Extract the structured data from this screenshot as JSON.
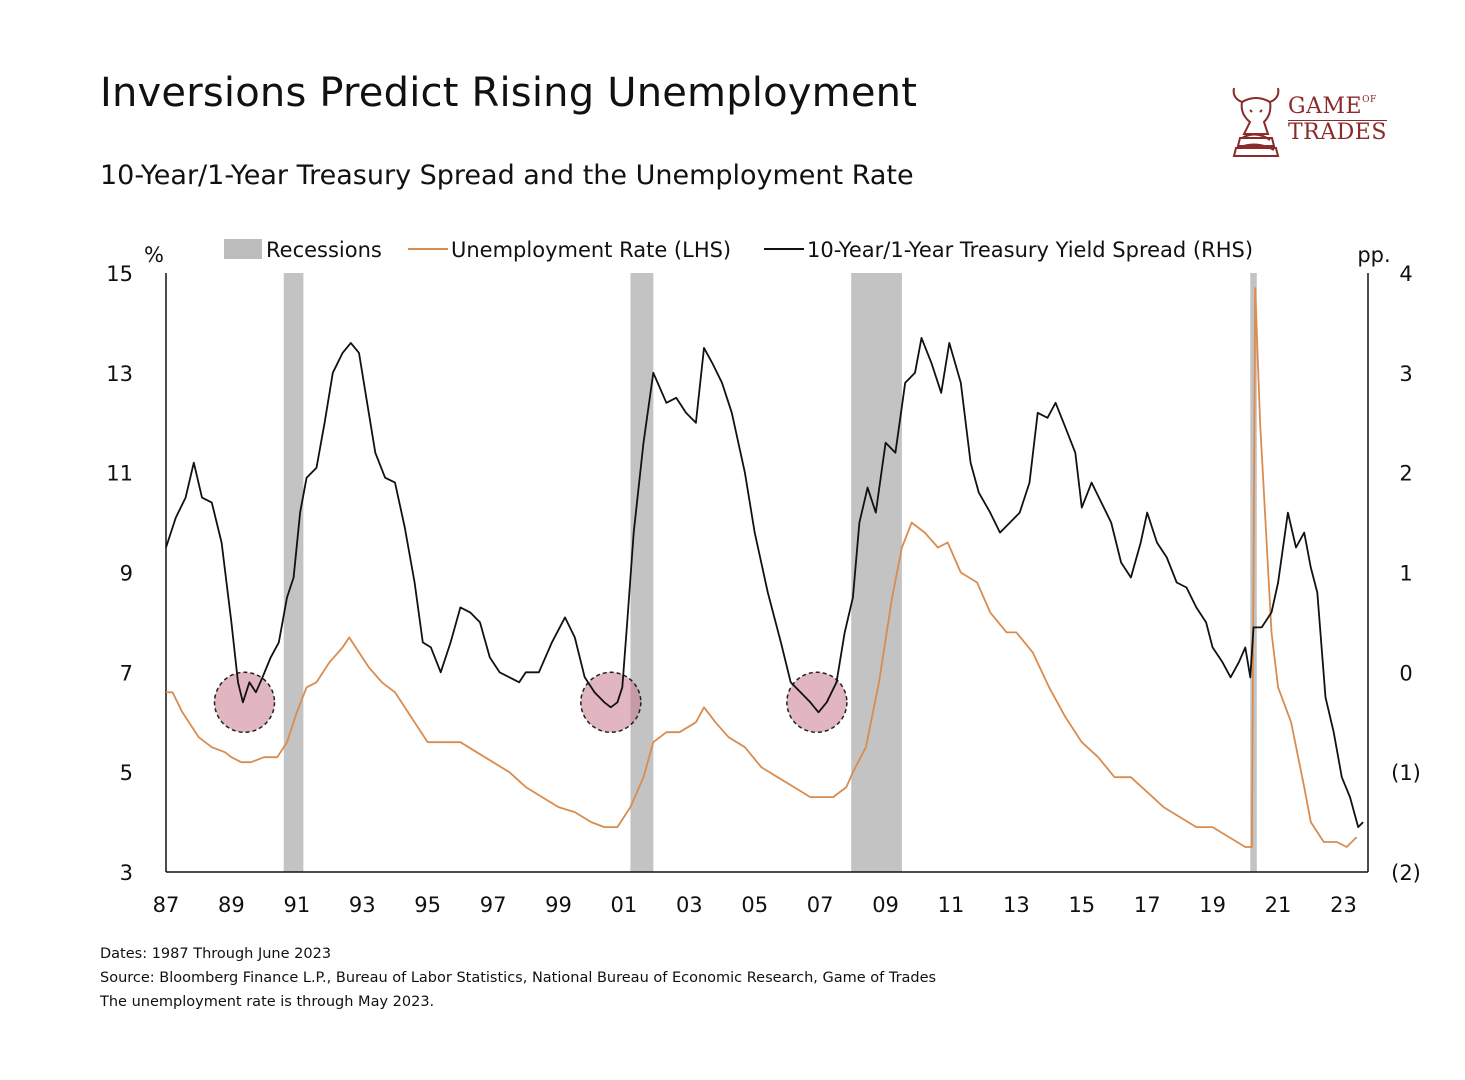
{
  "title": "Inversions Predict Rising Unemployment",
  "subtitle": "10-Year/1-Year Treasury Spread and the Unemployment Rate",
  "logo": {
    "line1": "GAME",
    "line1_small": "OF",
    "line2": "TRADES",
    "icon": "bull-chess-knight-icon",
    "color": "#8a2a2a"
  },
  "footnotes": [
    "Dates: 1987 Through June 2023",
    "Source: Bloomberg Finance L.P., Bureau of Labor Statistics, National Bureau of Economic Research, Game of Trades",
    "The unemployment rate is through May 2023."
  ],
  "chart_data": {
    "type": "line",
    "title": "Inversions Predict Rising Unemployment",
    "legend": [
      "Recessions",
      "Unemployment Rate (LHS)",
      "10-Year/1-Year Treasury Yield Spread (RHS)"
    ],
    "ylabel_left": "%",
    "ylabel_right": "pp.",
    "xlim": [
      1987,
      2023.75
    ],
    "ylim_left": [
      3,
      15
    ],
    "ylim_right": [
      -2,
      4
    ],
    "x_ticks": [
      "87",
      "89",
      "91",
      "93",
      "95",
      "97",
      "99",
      "01",
      "03",
      "05",
      "07",
      "09",
      "11",
      "13",
      "15",
      "17",
      "19",
      "21",
      "23"
    ],
    "y_ticks_left": [
      "3",
      "5",
      "7",
      "9",
      "11",
      "13",
      "15"
    ],
    "y_ticks_right": [
      "(2)",
      "(1)",
      "0",
      "1",
      "2",
      "3",
      "4"
    ],
    "recessions": [
      [
        1990.6,
        1991.2
      ],
      [
        2001.2,
        2001.9
      ],
      [
        2007.95,
        2009.5
      ],
      [
        2020.15,
        2020.35
      ]
    ],
    "inversion_highlights": [
      [
        1989.4,
        -0.3
      ],
      [
        2000.6,
        -0.3
      ],
      [
        2006.9,
        -0.3
      ]
    ],
    "colors": {
      "unemployment": "#d98c4f",
      "spread": "#111111",
      "recession": "#bdbdbd",
      "highlight": "#c97a8c"
    },
    "series": [
      {
        "name": "Unemployment Rate (LHS)",
        "axis": "left",
        "points": [
          [
            1987.0,
            6.6
          ],
          [
            1987.2,
            6.6
          ],
          [
            1987.5,
            6.2
          ],
          [
            1987.8,
            5.9
          ],
          [
            1988.0,
            5.7
          ],
          [
            1988.4,
            5.5
          ],
          [
            1988.8,
            5.4
          ],
          [
            1989.0,
            5.3
          ],
          [
            1989.3,
            5.2
          ],
          [
            1989.6,
            5.2
          ],
          [
            1990.0,
            5.3
          ],
          [
            1990.4,
            5.3
          ],
          [
            1990.7,
            5.6
          ],
          [
            1991.0,
            6.2
          ],
          [
            1991.3,
            6.7
          ],
          [
            1991.6,
            6.8
          ],
          [
            1992.0,
            7.2
          ],
          [
            1992.4,
            7.5
          ],
          [
            1992.6,
            7.7
          ],
          [
            1992.9,
            7.4
          ],
          [
            1993.2,
            7.1
          ],
          [
            1993.6,
            6.8
          ],
          [
            1994.0,
            6.6
          ],
          [
            1994.5,
            6.1
          ],
          [
            1995.0,
            5.6
          ],
          [
            1995.5,
            5.6
          ],
          [
            1996.0,
            5.6
          ],
          [
            1996.5,
            5.4
          ],
          [
            1997.0,
            5.2
          ],
          [
            1997.5,
            5.0
          ],
          [
            1998.0,
            4.7
          ],
          [
            1998.5,
            4.5
          ],
          [
            1999.0,
            4.3
          ],
          [
            1999.5,
            4.2
          ],
          [
            2000.0,
            4.0
          ],
          [
            2000.4,
            3.9
          ],
          [
            2000.8,
            3.9
          ],
          [
            2001.2,
            4.3
          ],
          [
            2001.6,
            4.9
          ],
          [
            2001.9,
            5.6
          ],
          [
            2002.3,
            5.8
          ],
          [
            2002.7,
            5.8
          ],
          [
            2003.2,
            6.0
          ],
          [
            2003.45,
            6.3
          ],
          [
            2003.8,
            6.0
          ],
          [
            2004.2,
            5.7
          ],
          [
            2004.7,
            5.5
          ],
          [
            2005.2,
            5.1
          ],
          [
            2005.7,
            4.9
          ],
          [
            2006.2,
            4.7
          ],
          [
            2006.7,
            4.5
          ],
          [
            2007.0,
            4.5
          ],
          [
            2007.4,
            4.5
          ],
          [
            2007.8,
            4.7
          ],
          [
            2008.0,
            5.0
          ],
          [
            2008.4,
            5.5
          ],
          [
            2008.8,
            6.8
          ],
          [
            2009.2,
            8.5
          ],
          [
            2009.5,
            9.5
          ],
          [
            2009.8,
            10.0
          ],
          [
            2010.2,
            9.8
          ],
          [
            2010.6,
            9.5
          ],
          [
            2010.9,
            9.6
          ],
          [
            2011.3,
            9.0
          ],
          [
            2011.8,
            8.8
          ],
          [
            2012.2,
            8.2
          ],
          [
            2012.7,
            7.8
          ],
          [
            2013.0,
            7.8
          ],
          [
            2013.5,
            7.4
          ],
          [
            2014.0,
            6.7
          ],
          [
            2014.5,
            6.1
          ],
          [
            2015.0,
            5.6
          ],
          [
            2015.5,
            5.3
          ],
          [
            2016.0,
            4.9
          ],
          [
            2016.5,
            4.9
          ],
          [
            2017.0,
            4.6
          ],
          [
            2017.5,
            4.3
          ],
          [
            2018.0,
            4.1
          ],
          [
            2018.5,
            3.9
          ],
          [
            2019.0,
            3.9
          ],
          [
            2019.5,
            3.7
          ],
          [
            2020.0,
            3.5
          ],
          [
            2020.2,
            3.5
          ],
          [
            2020.3,
            14.7
          ],
          [
            2020.45,
            12.0
          ],
          [
            2020.6,
            10.2
          ],
          [
            2020.8,
            7.8
          ],
          [
            2021.0,
            6.7
          ],
          [
            2021.4,
            6.0
          ],
          [
            2021.8,
            4.7
          ],
          [
            2022.0,
            4.0
          ],
          [
            2022.4,
            3.6
          ],
          [
            2022.8,
            3.6
          ],
          [
            2023.1,
            3.5
          ],
          [
            2023.4,
            3.7
          ]
        ]
      },
      {
        "name": "10-Year/1-Year Treasury Yield Spread (RHS)",
        "axis": "right",
        "points": [
          [
            1987.0,
            1.25
          ],
          [
            1987.3,
            1.55
          ],
          [
            1987.6,
            1.75
          ],
          [
            1987.85,
            2.1
          ],
          [
            1988.1,
            1.75
          ],
          [
            1988.4,
            1.7
          ],
          [
            1988.7,
            1.3
          ],
          [
            1989.0,
            0.5
          ],
          [
            1989.2,
            -0.1
          ],
          [
            1989.35,
            -0.3
          ],
          [
            1989.55,
            -0.1
          ],
          [
            1989.75,
            -0.2
          ],
          [
            1989.95,
            -0.05
          ],
          [
            1990.2,
            0.15
          ],
          [
            1990.45,
            0.3
          ],
          [
            1990.7,
            0.75
          ],
          [
            1990.9,
            0.95
          ],
          [
            1991.1,
            1.6
          ],
          [
            1991.3,
            1.95
          ],
          [
            1991.6,
            2.05
          ],
          [
            1991.85,
            2.5
          ],
          [
            1992.1,
            3.0
          ],
          [
            1992.4,
            3.2
          ],
          [
            1992.65,
            3.3
          ],
          [
            1992.9,
            3.2
          ],
          [
            1993.1,
            2.8
          ],
          [
            1993.4,
            2.2
          ],
          [
            1993.7,
            1.95
          ],
          [
            1994.0,
            1.9
          ],
          [
            1994.3,
            1.45
          ],
          [
            1994.6,
            0.9
          ],
          [
            1994.85,
            0.3
          ],
          [
            1995.1,
            0.25
          ],
          [
            1995.4,
            0.0
          ],
          [
            1995.7,
            0.3
          ],
          [
            1996.0,
            0.65
          ],
          [
            1996.3,
            0.6
          ],
          [
            1996.6,
            0.5
          ],
          [
            1996.9,
            0.15
          ],
          [
            1997.2,
            0.0
          ],
          [
            1997.5,
            -0.05
          ],
          [
            1997.8,
            -0.1
          ],
          [
            1998.0,
            0.0
          ],
          [
            1998.4,
            0.0
          ],
          [
            1998.8,
            0.3
          ],
          [
            1999.2,
            0.55
          ],
          [
            1999.5,
            0.35
          ],
          [
            1999.8,
            -0.05
          ],
          [
            2000.1,
            -0.2
          ],
          [
            2000.4,
            -0.3
          ],
          [
            2000.6,
            -0.35
          ],
          [
            2000.8,
            -0.3
          ],
          [
            2000.95,
            -0.15
          ],
          [
            2001.1,
            0.5
          ],
          [
            2001.3,
            1.4
          ],
          [
            2001.6,
            2.3
          ],
          [
            2001.9,
            3.0
          ],
          [
            2002.3,
            2.7
          ],
          [
            2002.6,
            2.75
          ],
          [
            2002.9,
            2.6
          ],
          [
            2003.2,
            2.5
          ],
          [
            2003.45,
            3.25
          ],
          [
            2003.7,
            3.1
          ],
          [
            2004.0,
            2.9
          ],
          [
            2004.3,
            2.6
          ],
          [
            2004.7,
            2.0
          ],
          [
            2005.0,
            1.4
          ],
          [
            2005.4,
            0.8
          ],
          [
            2005.8,
            0.3
          ],
          [
            2006.1,
            -0.1
          ],
          [
            2006.4,
            -0.2
          ],
          [
            2006.7,
            -0.3
          ],
          [
            2006.95,
            -0.4
          ],
          [
            2007.2,
            -0.3
          ],
          [
            2007.5,
            -0.1
          ],
          [
            2007.75,
            0.4
          ],
          [
            2008.0,
            0.75
          ],
          [
            2008.2,
            1.5
          ],
          [
            2008.45,
            1.85
          ],
          [
            2008.7,
            1.6
          ],
          [
            2009.0,
            2.3
          ],
          [
            2009.3,
            2.2
          ],
          [
            2009.6,
            2.9
          ],
          [
            2009.9,
            3.0
          ],
          [
            2010.1,
            3.35
          ],
          [
            2010.4,
            3.1
          ],
          [
            2010.7,
            2.8
          ],
          [
            2010.95,
            3.3
          ],
          [
            2011.3,
            2.9
          ],
          [
            2011.6,
            2.1
          ],
          [
            2011.85,
            1.8
          ],
          [
            2012.2,
            1.6
          ],
          [
            2012.5,
            1.4
          ],
          [
            2012.8,
            1.5
          ],
          [
            2013.1,
            1.6
          ],
          [
            2013.4,
            1.9
          ],
          [
            2013.65,
            2.6
          ],
          [
            2013.95,
            2.55
          ],
          [
            2014.2,
            2.7
          ],
          [
            2014.5,
            2.45
          ],
          [
            2014.8,
            2.2
          ],
          [
            2015.0,
            1.65
          ],
          [
            2015.3,
            1.9
          ],
          [
            2015.6,
            1.7
          ],
          [
            2015.9,
            1.5
          ],
          [
            2016.2,
            1.1
          ],
          [
            2016.5,
            0.95
          ],
          [
            2016.8,
            1.3
          ],
          [
            2017.0,
            1.6
          ],
          [
            2017.3,
            1.3
          ],
          [
            2017.6,
            1.15
          ],
          [
            2017.9,
            0.9
          ],
          [
            2018.2,
            0.85
          ],
          [
            2018.5,
            0.65
          ],
          [
            2018.8,
            0.5
          ],
          [
            2019.0,
            0.25
          ],
          [
            2019.3,
            0.1
          ],
          [
            2019.55,
            -0.05
          ],
          [
            2019.8,
            0.1
          ],
          [
            2020.0,
            0.25
          ],
          [
            2020.15,
            -0.05
          ],
          [
            2020.25,
            0.45
          ],
          [
            2020.5,
            0.45
          ],
          [
            2020.8,
            0.6
          ],
          [
            2021.0,
            0.9
          ],
          [
            2021.3,
            1.6
          ],
          [
            2021.55,
            1.25
          ],
          [
            2021.8,
            1.4
          ],
          [
            2022.0,
            1.05
          ],
          [
            2022.2,
            0.8
          ],
          [
            2022.45,
            -0.25
          ],
          [
            2022.7,
            -0.6
          ],
          [
            2022.95,
            -1.05
          ],
          [
            2023.2,
            -1.25
          ],
          [
            2023.45,
            -1.55
          ],
          [
            2023.6,
            -1.5
          ]
        ]
      }
    ]
  }
}
